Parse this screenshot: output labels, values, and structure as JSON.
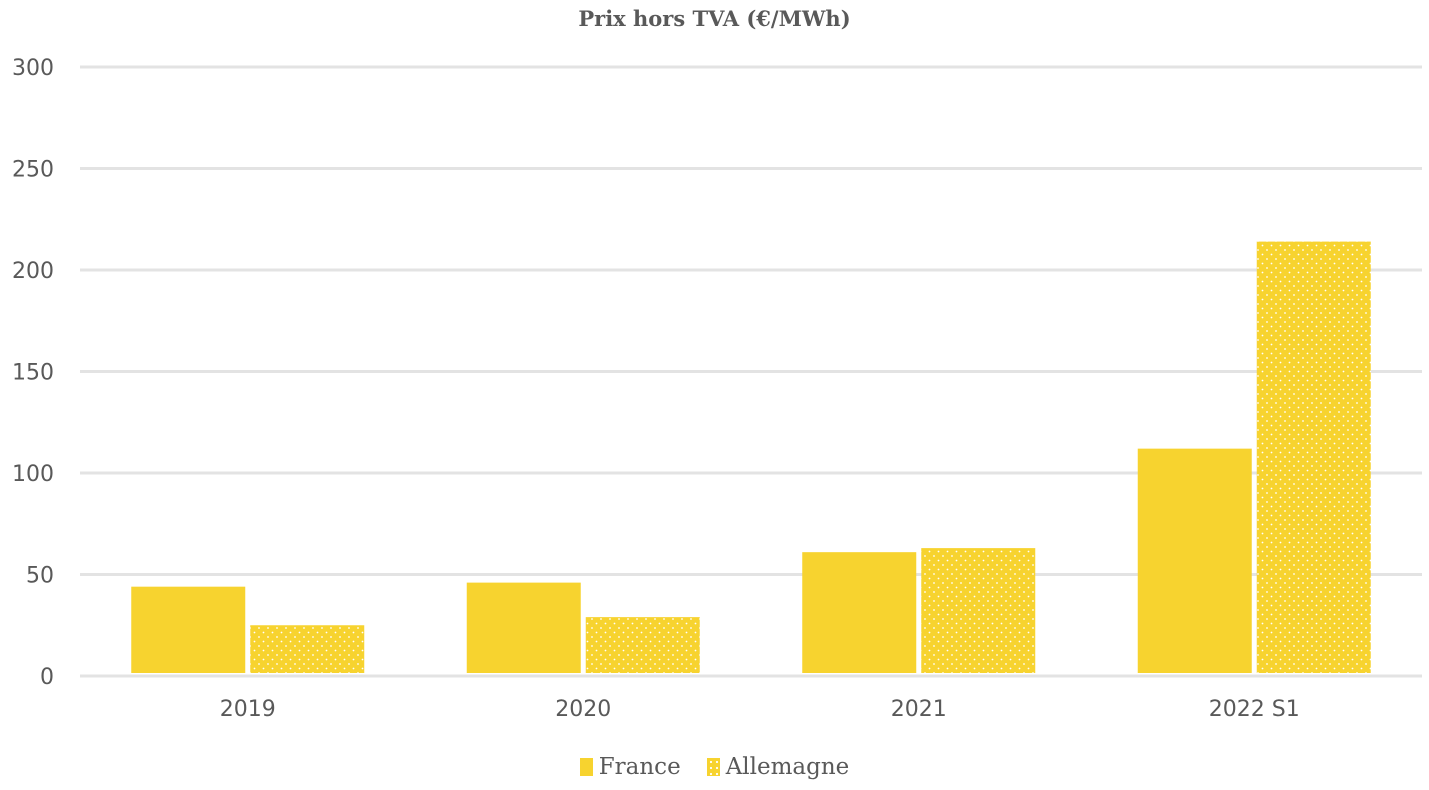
{
  "chart_data": {
    "type": "bar",
    "title": "Prix hors TVA (€/MWh)",
    "categories": [
      "2019",
      "2020",
      "2021",
      "2022 S1"
    ],
    "series": [
      {
        "name": "France",
        "values": [
          44,
          46,
          61,
          112
        ],
        "color": "#F7D32F",
        "pattern": "solid"
      },
      {
        "name": "Allemagne",
        "values": [
          25,
          29,
          63,
          214
        ],
        "color": "#F7D32F",
        "pattern": "dotted"
      }
    ],
    "ylim": [
      0,
      300
    ],
    "yticks": [
      "0",
      "50",
      "100",
      "150",
      "200",
      "250",
      "300"
    ],
    "grid": true,
    "legend_position": "bottom"
  }
}
